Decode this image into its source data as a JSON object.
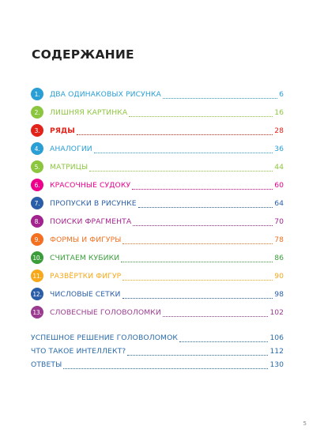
{
  "title": "СОДЕРЖАНИЕ",
  "chapters": [
    {
      "num": "1.",
      "label": "ДВА ОДИНАКОВЫХ РИСУНКА",
      "page": "6",
      "color": "#2a9fd6",
      "bold": false
    },
    {
      "num": "2.",
      "label": "ЛИШНЯЯ КАРТИНКА",
      "page": "16",
      "color": "#8cc63f",
      "bold": false
    },
    {
      "num": "3.",
      "label": "РЯДЫ",
      "page": "28",
      "color": "#e2231a",
      "bold": true
    },
    {
      "num": "4.",
      "label": "АНАЛОГИИ",
      "page": "36",
      "color": "#2a9fd6",
      "bold": false
    },
    {
      "num": "5.",
      "label": "МАТРИЦЫ",
      "page": "44",
      "color": "#8cc63f",
      "bold": false
    },
    {
      "num": "6.",
      "label": "КРАСОЧНЫЕ СУДОКУ",
      "page": "60",
      "color": "#ec008c",
      "bold": false
    },
    {
      "num": "7.",
      "label": "ПРОПУСКИ В РИСУНКЕ",
      "page": "64",
      "color": "#2a5ea8",
      "bold": false
    },
    {
      "num": "8.",
      "label": "ПОИСКИ ФРАГМЕНТА",
      "page": "70",
      "color": "#a3238e",
      "bold": false
    },
    {
      "num": "9.",
      "label": "ФОРМЫ И ФИГУРЫ",
      "page": "78",
      "color": "#f37021",
      "bold": false
    },
    {
      "num": "10.",
      "label": "СЧИТАЕМ КУБИКИ",
      "page": "86",
      "color": "#3a9d3a",
      "bold": false
    },
    {
      "num": "11.",
      "label": "РАЗВЁРТКИ ФИГУР",
      "page": "90",
      "color": "#f7a81b",
      "bold": false
    },
    {
      "num": "12.",
      "label": "ЧИСЛОВЫЕ СЕТКИ",
      "page": "98",
      "color": "#2a5ea8",
      "bold": false
    },
    {
      "num": "13.",
      "label": "СЛОВЕСНЫЕ ГОЛОВОЛОМКИ",
      "page": "102",
      "color": "#9b3b8f",
      "bold": false
    }
  ],
  "extras": [
    {
      "label": "УСПЕШНОЕ РЕШЕНИЕ ГОЛОВОЛОМОК",
      "page": "106"
    },
    {
      "label": "ЧТО ТАКОЕ ИНТЕЛЛЕКТ?",
      "page": "112"
    },
    {
      "label": "ОТВЕТЫ",
      "page": "130"
    }
  ],
  "page_number": "5"
}
